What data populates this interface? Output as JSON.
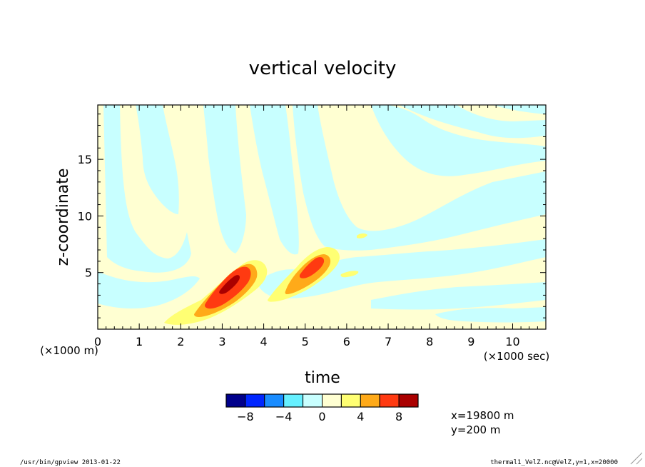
{
  "chart_data": {
    "type": "heatmap",
    "title": "vertical velocity",
    "xlabel": "time",
    "ylabel": "z-coordinate",
    "x_unit_note": "(×1000 sec)",
    "y_unit_note": "(×1000 m)",
    "xlim": [
      0,
      10.8
    ],
    "ylim": [
      0,
      19.8
    ],
    "x_ticks": [
      0,
      1,
      2,
      3,
      4,
      5,
      6,
      7,
      8,
      9,
      10
    ],
    "y_ticks": [
      5,
      10,
      15
    ],
    "colorbar": {
      "levels": [
        -10,
        -8,
        -6,
        -4,
        -2,
        0,
        2,
        4,
        6,
        8,
        10
      ],
      "tick_values": [
        -8,
        -4,
        0,
        4,
        8
      ],
      "colors": [
        "#00008b",
        "#0026ff",
        "#198cff",
        "#66f0ff",
        "#c8ffff",
        "#ffffd2",
        "#ffff73",
        "#ffaa19",
        "#ff3a11",
        "#aa0000"
      ]
    },
    "notes": [
      "x=19800 m",
      "y=200 m"
    ],
    "features": [
      {
        "type": "updraft",
        "t_center": 3.2,
        "z_center": 4.1,
        "peak": 9
      },
      {
        "type": "updraft",
        "t_center": 5.25,
        "z_center": 5.7,
        "peak": 7
      }
    ]
  },
  "footer": {
    "left": "/usr/bin/gpview  2013-01-22",
    "right": "thermal1_VelZ.nc@VelZ,y=1,x=20000"
  }
}
